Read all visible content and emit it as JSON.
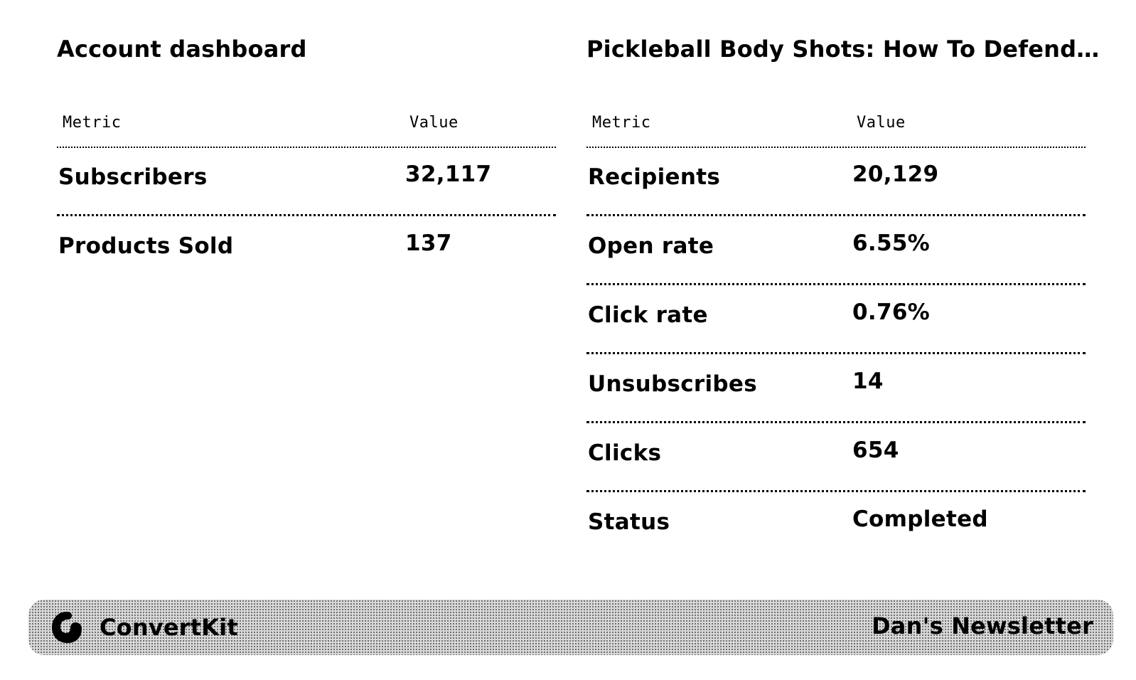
{
  "account": {
    "title": "Account dashboard",
    "col_metric": "Metric",
    "col_value": "Value",
    "rows": [
      {
        "metric": "Subscribers",
        "value": "32,117"
      },
      {
        "metric": "Products Sold",
        "value": "137"
      }
    ]
  },
  "broadcast": {
    "title": "Pickleball Body Shots: How To Defend…",
    "col_metric": "Metric",
    "col_value": "Value",
    "rows": [
      {
        "metric": "Recipients",
        "value": "20,129"
      },
      {
        "metric": "Open rate",
        "value": "6.55%"
      },
      {
        "metric": "Click rate",
        "value": "0.76%"
      },
      {
        "metric": "Unsubscribes",
        "value": "14"
      },
      {
        "metric": "Clicks",
        "value": "654"
      },
      {
        "metric": "Status",
        "value": "Completed"
      }
    ]
  },
  "footer": {
    "brand_icon": "convertkit-logo-icon",
    "brand_name": "ConvertKit",
    "newsletter_name": "Dan's Newsletter"
  }
}
